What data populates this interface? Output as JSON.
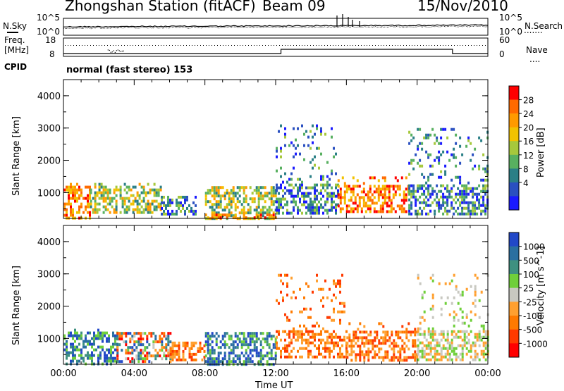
{
  "header": {
    "station": "Zhongshan Station (fitACF)",
    "beam": "Beam 09",
    "date": "15/Nov/2010"
  },
  "noise_panel": {
    "left_label": "N.Sky",
    "right_label": "N.Search",
    "ticks_left": [
      "10^5",
      "10^0"
    ],
    "ticks_right": [
      "10^5",
      "10^0"
    ]
  },
  "freq_panel": {
    "left_label_1": "Freq.",
    "left_label_2": "[MHz]",
    "right_label": "Nave",
    "ticks_left": [
      "18",
      "8"
    ],
    "ticks_right": [
      "60",
      "0"
    ]
  },
  "cpid": {
    "label": "CPID",
    "value": "normal (fast stereo) 153"
  },
  "power_panel": {
    "ylabel": "Slant Range [km]",
    "colorbar_label": "Power [dB]",
    "colorbar_ticks": [
      "28",
      "24",
      "20",
      "16",
      "12",
      "8",
      "4"
    ],
    "colorbar_colors": [
      "#ff0000",
      "#ff6a00",
      "#ff9a00",
      "#f2c200",
      "#a6c83c",
      "#58b060",
      "#2a7f86",
      "#2a50c0",
      "#1a1aff"
    ]
  },
  "velocity_panel": {
    "ylabel": "Slant Range [km]",
    "colorbar_label": "Velocity [m s^-1]",
    "colorbar_ticks": [
      "1000",
      "500",
      "100",
      "25",
      "-25",
      "-100",
      "-500",
      "-1000"
    ],
    "colorbar_colors": [
      "#2248c8",
      "#2a6fa0",
      "#3e9080",
      "#6fcf3a",
      "#c8c8c0",
      "#ffa030",
      "#ff7a00",
      "#ff3a00",
      "#ff0000"
    ]
  },
  "chart_data": [
    {
      "type": "heatmap",
      "title": "Power",
      "ylabel": "Slant Range [km]",
      "xlabel": "Time UT",
      "x_ticks": [
        "00:00",
        "04:00",
        "08:00",
        "12:00",
        "16:00",
        "20:00",
        "00:00"
      ],
      "y_ticks": [
        "1000",
        "2000",
        "3000",
        "4000"
      ],
      "ylim": [
        200,
        4500
      ],
      "xlim_hours": [
        0,
        24
      ],
      "colorbar": {
        "label": "Power [dB]",
        "ticks": [
          4,
          8,
          12,
          16,
          20,
          24,
          28
        ]
      },
      "regions": [
        {
          "t0": 0.0,
          "t1": 1.5,
          "r0": 200,
          "r1": 1300,
          "level": "high"
        },
        {
          "t0": 1.5,
          "t1": 5.5,
          "r0": 400,
          "r1": 1300,
          "level": "medium"
        },
        {
          "t0": 5.5,
          "t1": 7.5,
          "r0": 300,
          "r1": 900,
          "level": "low"
        },
        {
          "t0": 8.0,
          "t1": 12.0,
          "r0": 200,
          "r1": 1200,
          "level": "medium"
        },
        {
          "t0": 8.0,
          "t1": 12.0,
          "r0": 200,
          "r1": 350,
          "level": "high"
        },
        {
          "t0": 12.0,
          "t1": 15.5,
          "r0": 400,
          "r1": 3200,
          "level": "low"
        },
        {
          "t0": 15.5,
          "t1": 19.5,
          "r0": 400,
          "r1": 1500,
          "level": "high"
        },
        {
          "t0": 19.5,
          "t1": 24.0,
          "r0": 300,
          "r1": 3000,
          "level": "low"
        }
      ]
    },
    {
      "type": "heatmap",
      "title": "Velocity",
      "ylabel": "Slant Range [km]",
      "xlabel": "Time UT",
      "x_ticks": [
        "00:00",
        "04:00",
        "08:00",
        "12:00",
        "16:00",
        "20:00",
        "00:00"
      ],
      "y_ticks": [
        "1000",
        "2000",
        "3000",
        "4000"
      ],
      "ylim": [
        200,
        4500
      ],
      "xlim_hours": [
        0,
        24
      ],
      "colorbar": {
        "label": "Velocity [m s^-1]",
        "ticks": [
          1000,
          500,
          100,
          25,
          -25,
          -100,
          -500,
          -1000
        ]
      },
      "regions": [
        {
          "t0": 0.0,
          "t1": 3.0,
          "r0": 200,
          "r1": 1300,
          "level": "positive_high"
        },
        {
          "t0": 3.0,
          "t1": 6.0,
          "r0": 300,
          "r1": 1200,
          "level": "mixed"
        },
        {
          "t0": 6.0,
          "t1": 8.0,
          "r0": 300,
          "r1": 900,
          "level": "negative"
        },
        {
          "t0": 8.0,
          "t1": 12.0,
          "r0": 200,
          "r1": 1200,
          "level": "positive_high"
        },
        {
          "t0": 12.0,
          "t1": 16.0,
          "r0": 400,
          "r1": 3000,
          "level": "negative"
        },
        {
          "t0": 16.0,
          "t1": 20.0,
          "r0": 300,
          "r1": 1500,
          "level": "negative"
        },
        {
          "t0": 20.0,
          "t1": 24.0,
          "r0": 300,
          "r1": 3000,
          "level": "near_zero"
        }
      ]
    }
  ],
  "xaxis": {
    "label": "Time UT",
    "ticks": [
      "00:00",
      "04:00",
      "08:00",
      "12:00",
      "16:00",
      "20:00",
      "00:00"
    ]
  }
}
